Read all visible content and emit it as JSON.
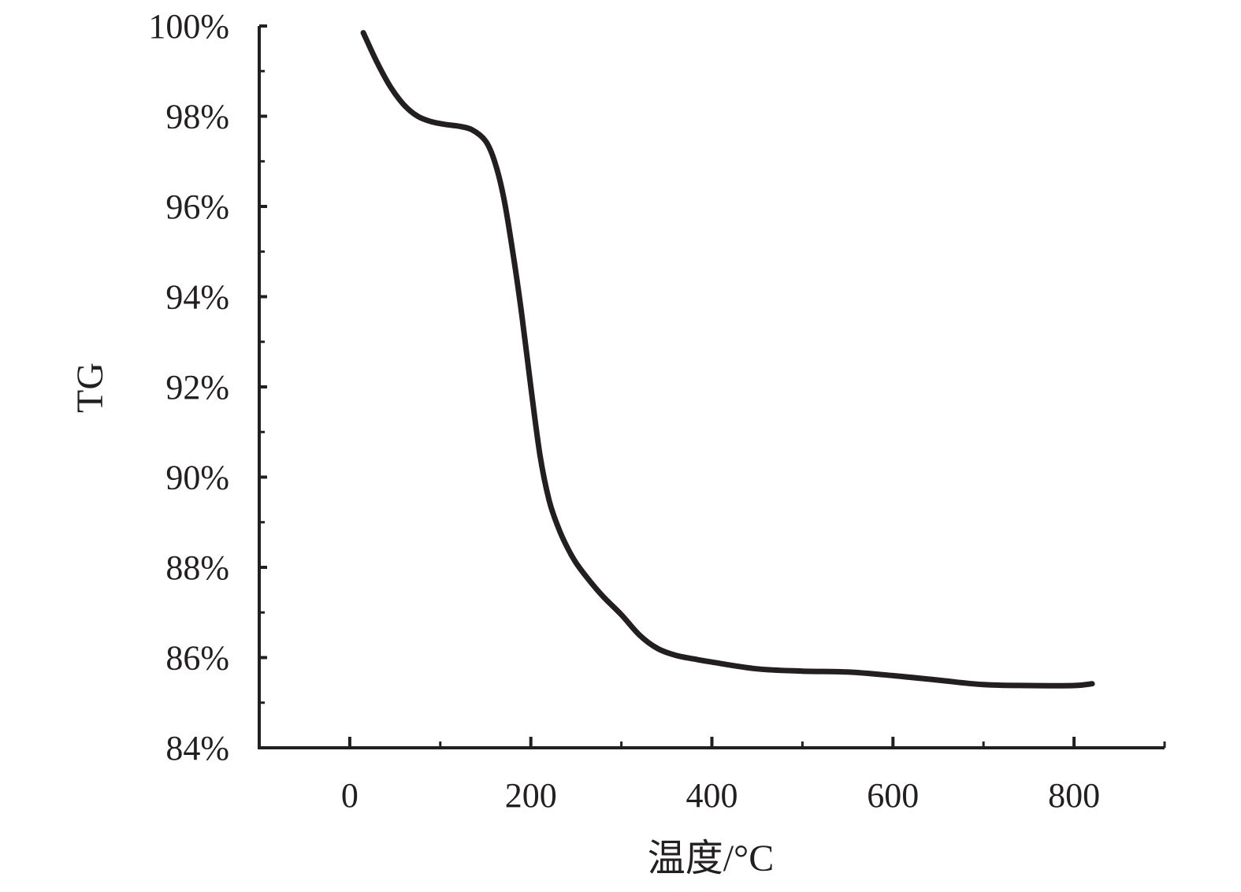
{
  "chart_data": {
    "type": "line",
    "xlabel": "温度/°C",
    "ylabel": "TG",
    "xlim": [
      -100,
      900
    ],
    "ylim": [
      84,
      100
    ],
    "x_ticks": [
      0,
      200,
      400,
      600,
      800
    ],
    "x_tick_labels": [
      "0",
      "200",
      "400",
      "600",
      "800"
    ],
    "x_minor_ticks": [
      100,
      300,
      500,
      700,
      900
    ],
    "y_ticks": [
      84,
      86,
      88,
      90,
      92,
      94,
      96,
      98,
      100
    ],
    "y_tick_labels": [
      "84%",
      "86%",
      "88%",
      "90%",
      "92%",
      "94%",
      "96%",
      "98%",
      "100%"
    ],
    "y_minor_ticks": [
      85,
      87,
      89,
      91,
      93,
      95,
      97,
      99
    ],
    "grid": false,
    "series": [
      {
        "color": "#231f20",
        "x": [
          15,
          30,
          45,
          60,
          75,
          90,
          105,
          120,
          135,
          150,
          160,
          170,
          180,
          190,
          200,
          210,
          220,
          230,
          240,
          250,
          265,
          280,
          300,
          320,
          340,
          360,
          380,
          400,
          450,
          500,
          550,
          600,
          650,
          700,
          750,
          800,
          820
        ],
        "y": [
          99.85,
          99.2,
          98.65,
          98.25,
          98.0,
          97.88,
          97.82,
          97.78,
          97.7,
          97.45,
          97.0,
          96.2,
          95.0,
          93.6,
          92.0,
          90.5,
          89.5,
          88.9,
          88.45,
          88.1,
          87.7,
          87.35,
          86.95,
          86.5,
          86.2,
          86.05,
          85.97,
          85.9,
          85.75,
          85.7,
          85.68,
          85.6,
          85.5,
          85.4,
          85.38,
          85.38,
          85.42
        ]
      }
    ]
  }
}
